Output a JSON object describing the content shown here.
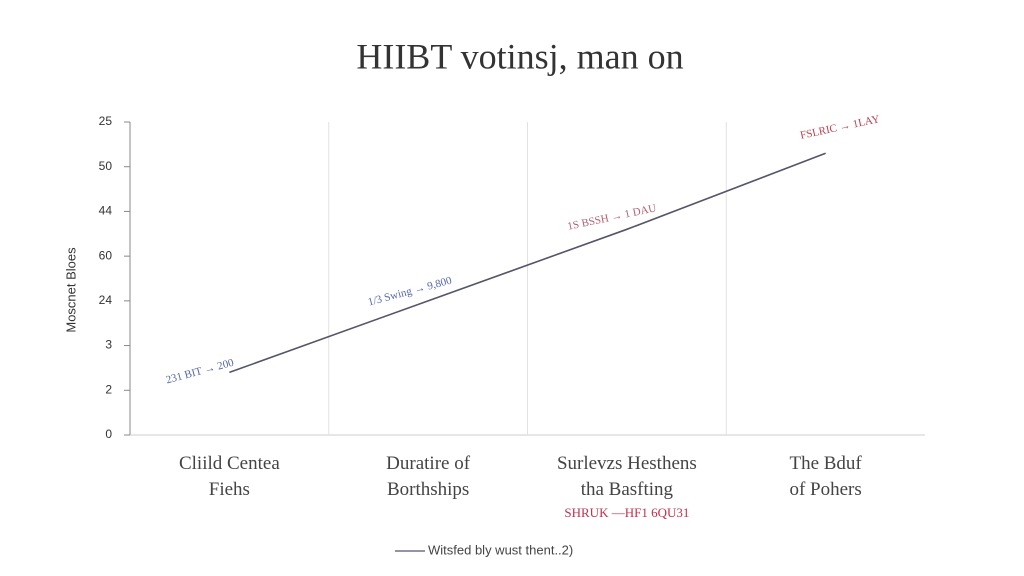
{
  "chart_data": {
    "type": "line",
    "title": "HIIBT votinsj, man on",
    "ylabel": "Moscnet Bloes",
    "categories": [
      "Cliild Centea Fiehs",
      "Duratire of Borthships",
      "Surlevzs Hesthens tha Basfting",
      "The Bduf of Pohers"
    ],
    "series": [
      {
        "name": "Witsfed bly wust thent..2)",
        "color": "#55556a",
        "values": [
          1.4,
          3.0,
          4.6,
          6.3
        ]
      }
    ],
    "ylim": [
      0,
      7
    ],
    "yticks": [
      0,
      {
        "value": 1,
        "label": "2"
      },
      {
        "value": 2,
        "label": "3"
      },
      {
        "value": 3,
        "label": "24"
      },
      {
        "value": 4,
        "label": "60"
      },
      {
        "value": 5,
        "label": "44"
      },
      {
        "value": 6,
        "label": "50"
      },
      {
        "value": 7,
        "label": "25"
      }
    ],
    "annotations": [
      {
        "text": "231 BIT → 200",
        "color": "#5566aa"
      },
      {
        "text": "1/3 Swing → 9,800",
        "color": "#5566aa"
      },
      {
        "text": "1S BSSH → 1 DAU",
        "color": "#b06070"
      },
      {
        "text": "FSLRIC → 1LAY",
        "color": "#c04050"
      },
      {
        "text": "SHRUK —HF1 6QU31",
        "color": "#c03050"
      }
    ]
  }
}
